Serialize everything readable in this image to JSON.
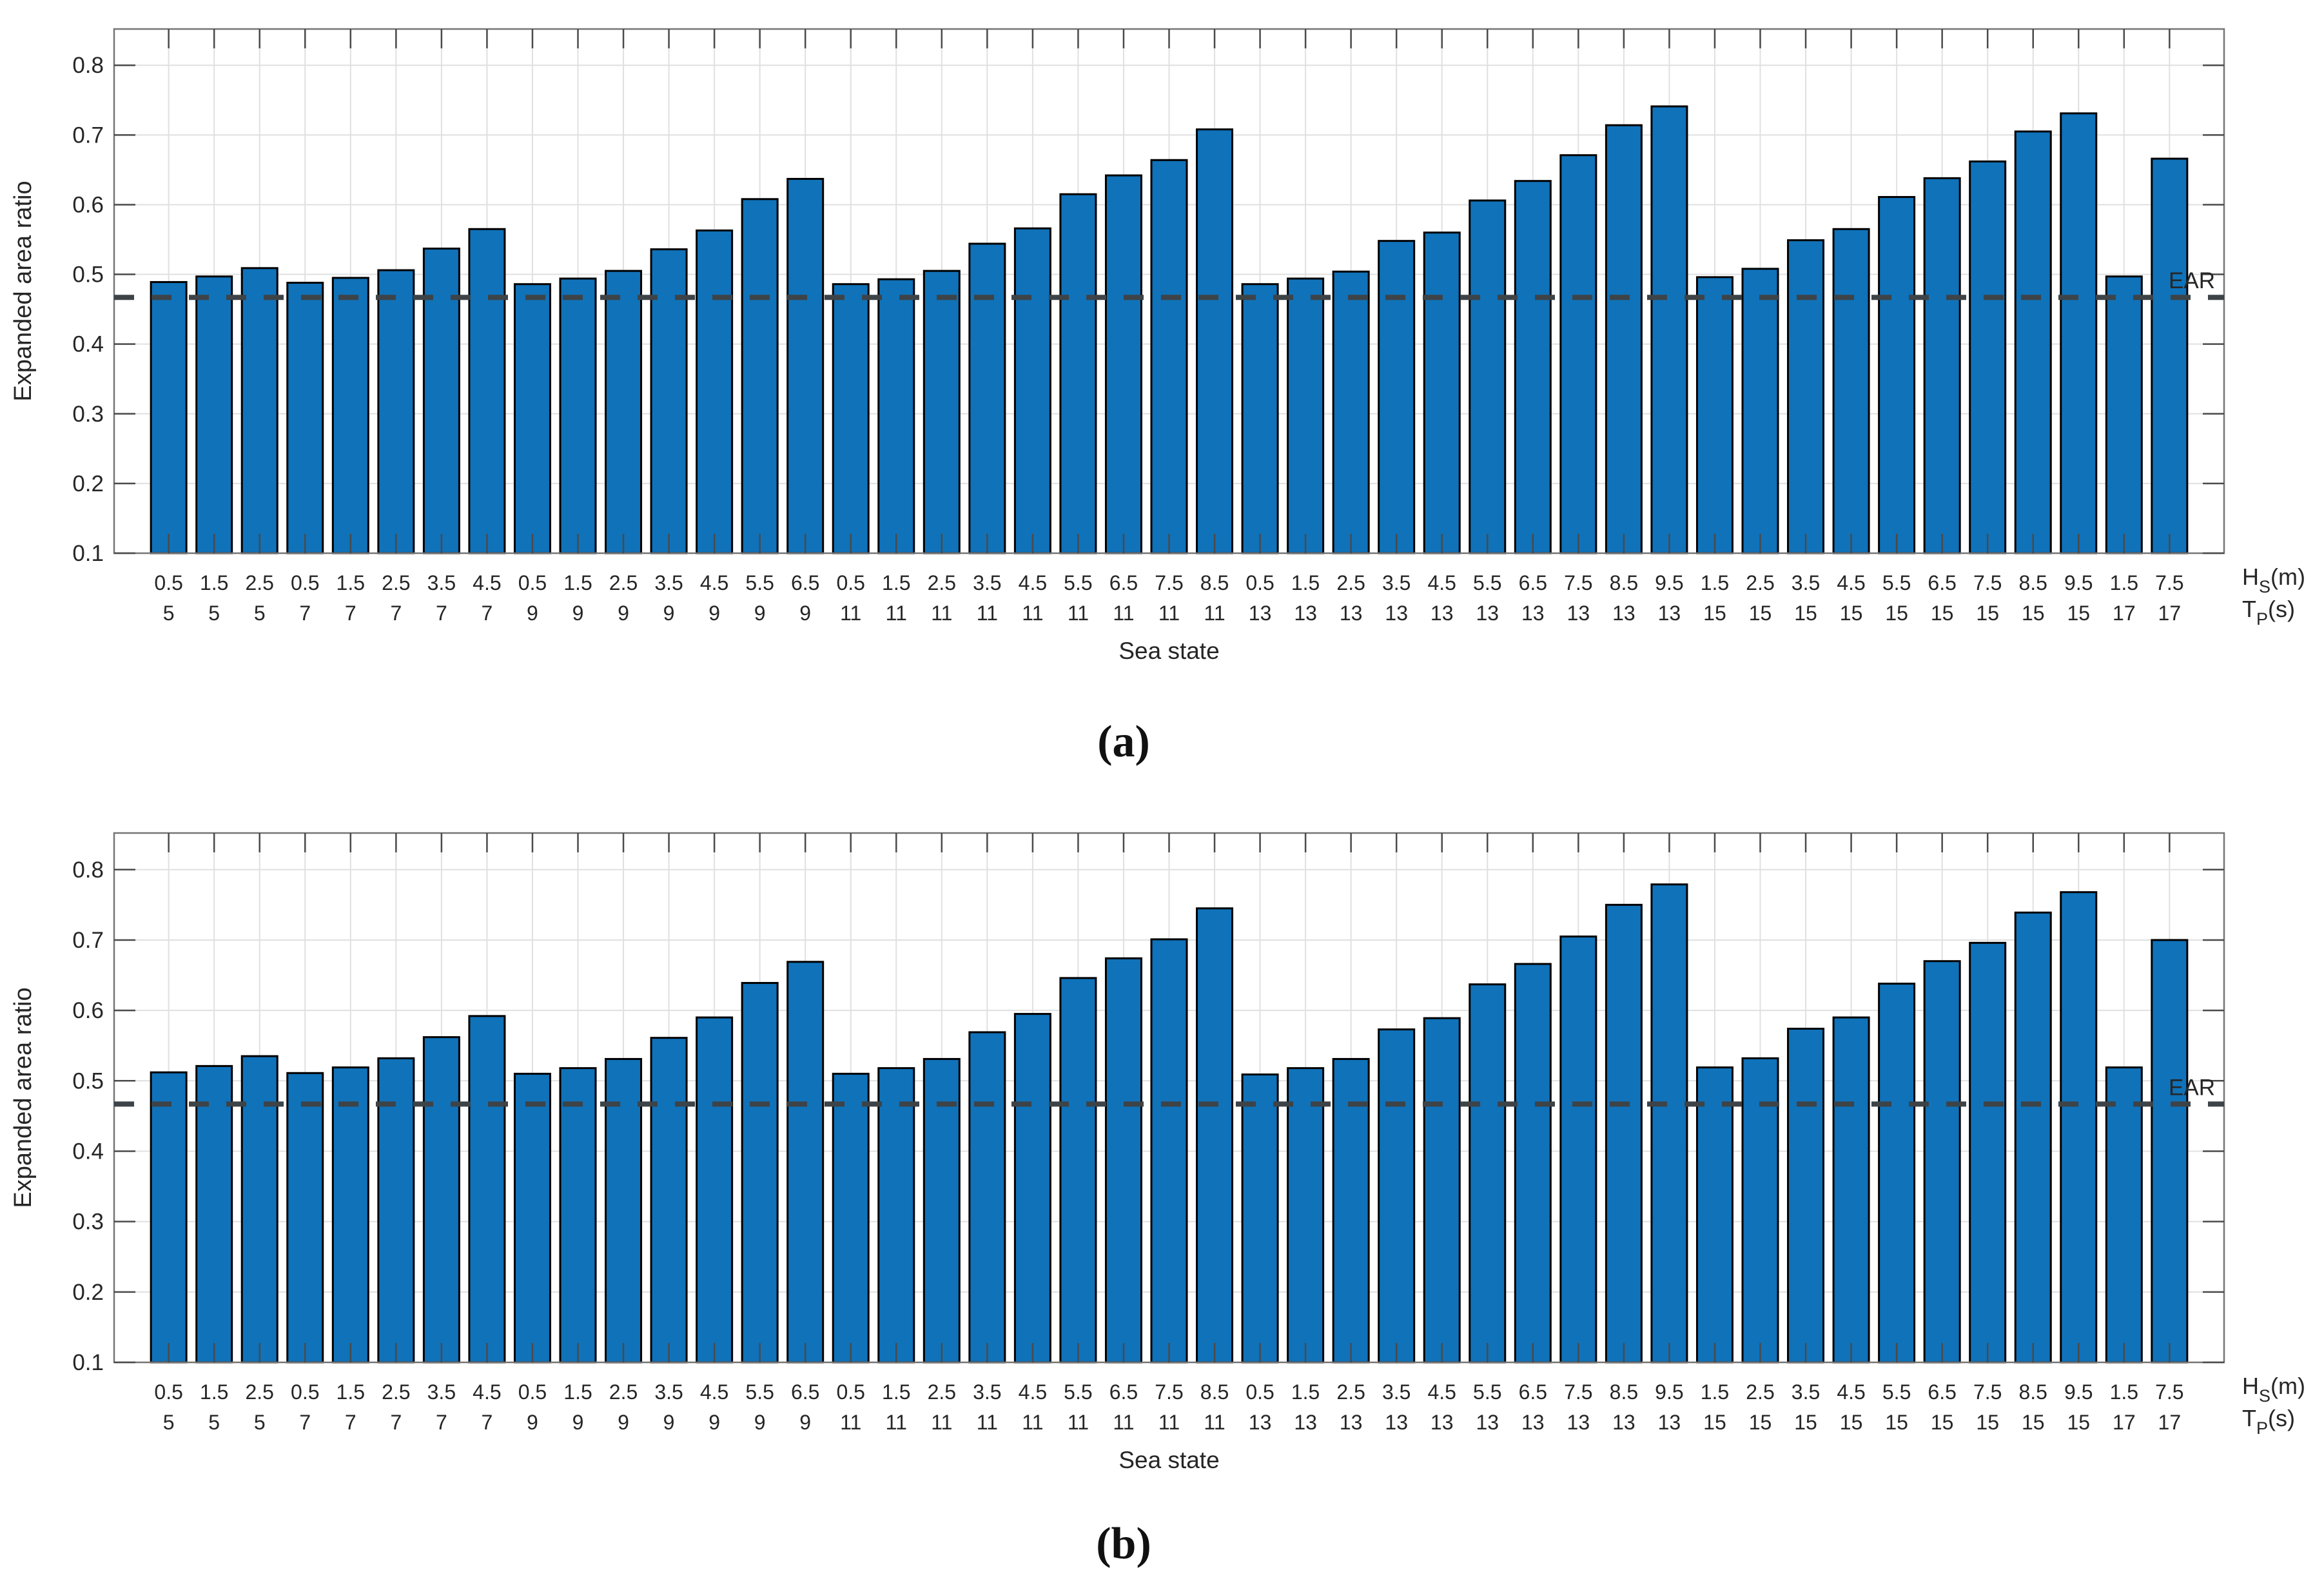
{
  "figure": {
    "captions": {
      "a": "(a)",
      "b": "(b)"
    },
    "colors": {
      "background": "#ffffff",
      "bar_fill": "#1072b9",
      "bar_edge": "#000000",
      "grid": "#e0e0e0",
      "frame": "#757575",
      "tick": "#4a4a4a",
      "text": "#262626",
      "ear_line": "#3d4347"
    }
  },
  "chart_data": [
    {
      "type": "bar",
      "panel": "a",
      "title": "",
      "xlabel": "Sea state",
      "ylabel": "Expanded area ratio",
      "ylim": [
        0.1,
        0.852
      ],
      "yticks": [
        0.1,
        0.2,
        0.3,
        0.4,
        0.5,
        0.6,
        0.7,
        0.8
      ],
      "grid": true,
      "legend": "none",
      "x_row_labels": {
        "hs": {
          "main": "H",
          "sub": "S",
          "unit": "(m)"
        },
        "tp": {
          "main": "T",
          "sub": "P",
          "unit": "(s)"
        }
      },
      "categories_hs": [
        "0.5",
        "1.5",
        "2.5",
        "0.5",
        "1.5",
        "2.5",
        "3.5",
        "4.5",
        "0.5",
        "1.5",
        "2.5",
        "3.5",
        "4.5",
        "5.5",
        "6.5",
        "0.5",
        "1.5",
        "2.5",
        "3.5",
        "4.5",
        "5.5",
        "6.5",
        "7.5",
        "8.5",
        "0.5",
        "1.5",
        "2.5",
        "3.5",
        "4.5",
        "5.5",
        "6.5",
        "7.5",
        "8.5",
        "9.5",
        "1.5",
        "2.5",
        "3.5",
        "4.5",
        "5.5",
        "6.5",
        "7.5",
        "8.5",
        "9.5",
        "1.5",
        "7.5"
      ],
      "categories_tp": [
        "5",
        "5",
        "5",
        "7",
        "7",
        "7",
        "7",
        "7",
        "9",
        "9",
        "9",
        "9",
        "9",
        "9",
        "9",
        "11",
        "11",
        "11",
        "11",
        "11",
        "11",
        "11",
        "11",
        "11",
        "13",
        "13",
        "13",
        "13",
        "13",
        "13",
        "13",
        "13",
        "13",
        "13",
        "15",
        "15",
        "15",
        "15",
        "15",
        "15",
        "15",
        "15",
        "15",
        "17",
        "17"
      ],
      "values": [
        0.489,
        0.497,
        0.509,
        0.488,
        0.495,
        0.506,
        0.537,
        0.565,
        0.486,
        0.494,
        0.505,
        0.536,
        0.563,
        0.608,
        0.637,
        0.486,
        0.493,
        0.505,
        0.544,
        0.566,
        0.615,
        0.642,
        0.664,
        0.708,
        0.486,
        0.494,
        0.504,
        0.548,
        0.56,
        0.606,
        0.634,
        0.671,
        0.714,
        0.741,
        0.496,
        0.508,
        0.549,
        0.565,
        0.611,
        0.638,
        0.662,
        0.705,
        0.731,
        0.497,
        0.666
      ],
      "reference_line": {
        "label": "EAR",
        "value": 0.467
      }
    },
    {
      "type": "bar",
      "panel": "b",
      "title": "",
      "xlabel": "Sea state",
      "ylabel": "Expanded area ratio",
      "ylim": [
        0.1,
        0.852
      ],
      "yticks": [
        0.1,
        0.2,
        0.3,
        0.4,
        0.5,
        0.6,
        0.7,
        0.8
      ],
      "grid": true,
      "legend": "none",
      "x_row_labels": {
        "hs": {
          "main": "H",
          "sub": "S",
          "unit": "(m)"
        },
        "tp": {
          "main": "T",
          "sub": "P",
          "unit": "(s)"
        }
      },
      "categories_hs": [
        "0.5",
        "1.5",
        "2.5",
        "0.5",
        "1.5",
        "2.5",
        "3.5",
        "4.5",
        "0.5",
        "1.5",
        "2.5",
        "3.5",
        "4.5",
        "5.5",
        "6.5",
        "0.5",
        "1.5",
        "2.5",
        "3.5",
        "4.5",
        "5.5",
        "6.5",
        "7.5",
        "8.5",
        "0.5",
        "1.5",
        "2.5",
        "3.5",
        "4.5",
        "5.5",
        "6.5",
        "7.5",
        "8.5",
        "9.5",
        "1.5",
        "2.5",
        "3.5",
        "4.5",
        "5.5",
        "6.5",
        "7.5",
        "8.5",
        "9.5",
        "1.5",
        "7.5"
      ],
      "categories_tp": [
        "5",
        "5",
        "5",
        "7",
        "7",
        "7",
        "7",
        "7",
        "9",
        "9",
        "9",
        "9",
        "9",
        "9",
        "9",
        "11",
        "11",
        "11",
        "11",
        "11",
        "11",
        "11",
        "11",
        "11",
        "13",
        "13",
        "13",
        "13",
        "13",
        "13",
        "13",
        "13",
        "13",
        "13",
        "15",
        "15",
        "15",
        "15",
        "15",
        "15",
        "15",
        "15",
        "15",
        "17",
        "17"
      ],
      "values": [
        0.512,
        0.521,
        0.535,
        0.511,
        0.519,
        0.532,
        0.562,
        0.592,
        0.51,
        0.518,
        0.531,
        0.561,
        0.59,
        0.639,
        0.669,
        0.51,
        0.518,
        0.531,
        0.569,
        0.595,
        0.646,
        0.674,
        0.701,
        0.745,
        0.509,
        0.518,
        0.531,
        0.573,
        0.589,
        0.637,
        0.666,
        0.705,
        0.75,
        0.779,
        0.519,
        0.532,
        0.574,
        0.59,
        0.638,
        0.67,
        0.696,
        0.739,
        0.768,
        0.519,
        0.7
      ],
      "reference_line": {
        "label": "EAR",
        "value": 0.467
      }
    }
  ]
}
